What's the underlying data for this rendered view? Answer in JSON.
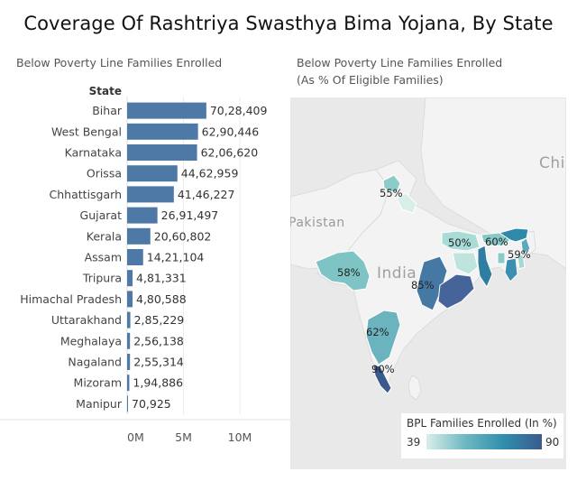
{
  "title": "Coverage Of Rashtriya Swasthya Bima Yojana, By State",
  "left_subtitle": "Below Poverty Line Families Enrolled",
  "right_subtitle_line1": "Below Poverty Line Families Enrolled",
  "right_subtitle_line2": "(As % Of Eligible Families)",
  "colors": {
    "bar": "#4e79a7",
    "map_base": "#e9e9e9",
    "map_land": "#f3f3f3"
  },
  "chart_data": [
    {
      "type": "bar",
      "orientation": "horizontal",
      "axis_header": "State",
      "categories": [
        "Bihar",
        "West Bengal",
        "Karnataka",
        "Orissa",
        "Chhattisgarh",
        "Gujarat",
        "Kerala",
        "Assam",
        "Tripura",
        "Himachal Pradesh",
        "Uttarakhand",
        "Meghalaya",
        "Nagaland",
        "Mizoram",
        "Manipur"
      ],
      "values": [
        7028409,
        6290446,
        6206620,
        4462959,
        4146227,
        2691497,
        2060802,
        1421104,
        481331,
        480588,
        285229,
        256138,
        255314,
        194886,
        70925
      ],
      "value_labels": [
        "70,28,409",
        "62,90,446",
        "62,06,620",
        "44,62,959",
        "41,46,227",
        "26,91,497",
        "20,60,802",
        "14,21,104",
        "4,81,331",
        "4,80,588",
        "2,85,229",
        "2,56,138",
        "2,55,314",
        "1,94,886",
        "70,925"
      ],
      "xlim": [
        0,
        12000000
      ],
      "xticks": [
        0,
        5000000,
        10000000
      ],
      "xtick_labels": [
        "0M",
        "5M",
        "10M"
      ],
      "grid": true
    },
    {
      "type": "map",
      "region_labels": [
        {
          "name": "Himachal Pradesh",
          "value": 55,
          "label": "55%"
        },
        {
          "name": "Gujarat",
          "value": 58,
          "label": "58%"
        },
        {
          "name": "Bihar",
          "value": 50,
          "label": "50%"
        },
        {
          "name": "Meghalaya",
          "value": 60,
          "label": "60%"
        },
        {
          "name": "Tripura",
          "value": 59,
          "label": "59%"
        },
        {
          "name": "Orissa",
          "value": 85,
          "label": "85%"
        },
        {
          "name": "Karnataka",
          "value": 62,
          "label": "62%"
        },
        {
          "name": "Kerala",
          "value": 90,
          "label": "90%"
        }
      ],
      "basemap_labels": [
        "Pakistan",
        "India",
        "Chi"
      ],
      "legend_title": "BPL Families Enrolled (In %)",
      "legend_min": "39",
      "legend_max": "90",
      "color_range": [
        "#d8eee9",
        "#3a5a8e"
      ]
    }
  ]
}
